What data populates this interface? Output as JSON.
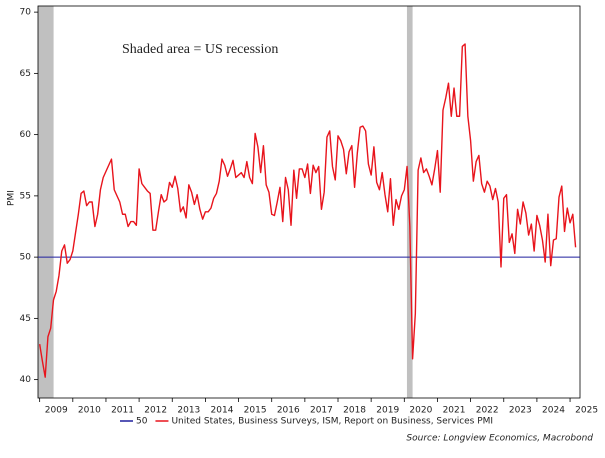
{
  "chart_data": {
    "type": "line",
    "annotation": "Shaded area = US recession",
    "y_label": "PMI",
    "source": "Source: Longview Economics, Macrobond",
    "xlim": [
      2008.95,
      2025.3
    ],
    "ylim": [
      38.5,
      70.5
    ],
    "yticks": [
      40,
      45,
      50,
      55,
      60,
      65,
      70
    ],
    "xticks": [
      2009,
      2010,
      2011,
      2012,
      2013,
      2014,
      2015,
      2016,
      2017,
      2018,
      2019,
      2020,
      2021,
      2022,
      2023,
      2024,
      2025
    ],
    "recession_color": "#c0c0c0",
    "recessions": [
      [
        2008.95,
        2009.42
      ],
      [
        2020.08,
        2020.25
      ]
    ],
    "x": [
      2009.0,
      2009.083,
      2009.167,
      2009.25,
      2009.333,
      2009.417,
      2009.5,
      2009.583,
      2009.667,
      2009.75,
      2009.833,
      2009.917,
      2010.0,
      2010.083,
      2010.167,
      2010.25,
      2010.333,
      2010.417,
      2010.5,
      2010.583,
      2010.667,
      2010.75,
      2010.833,
      2010.917,
      2011.0,
      2011.083,
      2011.167,
      2011.25,
      2011.333,
      2011.417,
      2011.5,
      2011.583,
      2011.667,
      2011.75,
      2011.833,
      2011.917,
      2012.0,
      2012.083,
      2012.167,
      2012.25,
      2012.333,
      2012.417,
      2012.5,
      2012.583,
      2012.667,
      2012.75,
      2012.833,
      2012.917,
      2013.0,
      2013.083,
      2013.167,
      2013.25,
      2013.333,
      2013.417,
      2013.5,
      2013.583,
      2013.667,
      2013.75,
      2013.833,
      2013.917,
      2014.0,
      2014.083,
      2014.167,
      2014.25,
      2014.333,
      2014.417,
      2014.5,
      2014.583,
      2014.667,
      2014.75,
      2014.833,
      2014.917,
      2015.0,
      2015.083,
      2015.167,
      2015.25,
      2015.333,
      2015.417,
      2015.5,
      2015.583,
      2015.667,
      2015.75,
      2015.833,
      2015.917,
      2016.0,
      2016.083,
      2016.167,
      2016.25,
      2016.333,
      2016.417,
      2016.5,
      2016.583,
      2016.667,
      2016.75,
      2016.833,
      2016.917,
      2017.0,
      2017.083,
      2017.167,
      2017.25,
      2017.333,
      2017.417,
      2017.5,
      2017.583,
      2017.667,
      2017.75,
      2017.833,
      2017.917,
      2018.0,
      2018.083,
      2018.167,
      2018.25,
      2018.333,
      2018.417,
      2018.5,
      2018.583,
      2018.667,
      2018.75,
      2018.833,
      2018.917,
      2019.0,
      2019.083,
      2019.167,
      2019.25,
      2019.333,
      2019.417,
      2019.5,
      2019.583,
      2019.667,
      2019.75,
      2019.833,
      2019.917,
      2020.0,
      2020.083,
      2020.167,
      2020.25,
      2020.333,
      2020.417,
      2020.5,
      2020.583,
      2020.667,
      2020.75,
      2020.833,
      2020.917,
      2021.0,
      2021.083,
      2021.167,
      2021.25,
      2021.333,
      2021.417,
      2021.5,
      2021.583,
      2021.667,
      2021.75,
      2021.833,
      2021.917,
      2022.0,
      2022.083,
      2022.167,
      2022.25,
      2022.333,
      2022.417,
      2022.5,
      2022.583,
      2022.667,
      2022.75,
      2022.833,
      2022.917,
      2023.0,
      2023.083,
      2023.167,
      2023.25,
      2023.333,
      2023.417,
      2023.5,
      2023.583,
      2023.667,
      2023.75,
      2023.833,
      2023.917,
      2024.0,
      2024.083,
      2024.167,
      2024.25,
      2024.333,
      2024.417,
      2024.5,
      2024.583,
      2024.667,
      2024.75,
      2024.833,
      2024.917,
      2025.0,
      2025.083,
      2025.167
    ],
    "series": [
      {
        "name": "50",
        "color": "#1f1f9e",
        "x": [
          2008.95,
          2025.3
        ],
        "values": [
          50,
          50
        ]
      },
      {
        "name": "United States, Business Surveys, ISM, Report on Business, Services PMI",
        "color": "#e8141c",
        "values": [
          42.9,
          41.5,
          40.2,
          43.5,
          44.2,
          46.5,
          47.2,
          48.5,
          50.5,
          51.0,
          49.5,
          49.8,
          50.5,
          52.0,
          53.5,
          55.2,
          55.4,
          54.2,
          54.5,
          54.5,
          52.5,
          53.5,
          55.5,
          56.5,
          57.0,
          57.5,
          58.0,
          55.5,
          55.0,
          54.5,
          53.5,
          53.5,
          52.5,
          52.9,
          52.9,
          52.6,
          57.2,
          56.0,
          55.7,
          55.4,
          55.2,
          52.2,
          52.2,
          53.7,
          55.1,
          54.5,
          54.7,
          56.1,
          55.7,
          56.6,
          55.6,
          53.7,
          54.1,
          53.2,
          55.9,
          55.3,
          54.3,
          55.1,
          53.9,
          53.1,
          53.7,
          53.7,
          54.0,
          54.8,
          55.2,
          56.2,
          58.0,
          57.5,
          56.6,
          57.2,
          57.9,
          56.5,
          56.7,
          56.9,
          56.5,
          57.8,
          56.5,
          56.0,
          60.1,
          59.0,
          56.9,
          59.1,
          55.9,
          55.3,
          53.5,
          53.4,
          54.5,
          55.7,
          52.9,
          56.5,
          55.5,
          52.6,
          57.1,
          54.8,
          57.2,
          57.2,
          56.5,
          57.6,
          55.2,
          57.5,
          56.9,
          57.4,
          53.9,
          55.3,
          59.8,
          60.3,
          57.4,
          56.3,
          59.9,
          59.5,
          58.8,
          56.8,
          58.6,
          59.1,
          55.7,
          58.5,
          60.6,
          60.7,
          60.3,
          57.6,
          56.7,
          59.0,
          56.1,
          55.5,
          56.9,
          55.1,
          53.7,
          56.4,
          52.6,
          54.7,
          53.9,
          55.0,
          55.5,
          57.4,
          52.5,
          41.7,
          45.4,
          57.1,
          58.1,
          56.9,
          57.2,
          56.6,
          55.9,
          57.2,
          58.7,
          55.3,
          62.0,
          63.0,
          64.2,
          61.5,
          63.8,
          61.5,
          61.5,
          67.2,
          67.4,
          61.5,
          59.5,
          56.2,
          57.8,
          58.3,
          56.0,
          55.3,
          56.2,
          55.8,
          54.7,
          55.6,
          54.5,
          49.2,
          54.8,
          55.1,
          51.2,
          51.9,
          50.3,
          53.9,
          52.7,
          54.5,
          53.6,
          51.8,
          52.7,
          50.5,
          53.4,
          52.6,
          51.4,
          49.6,
          53.5,
          49.3,
          51.4,
          51.5,
          54.9,
          55.8,
          52.1,
          54.0,
          52.8,
          53.5,
          50.8
        ]
      }
    ]
  }
}
